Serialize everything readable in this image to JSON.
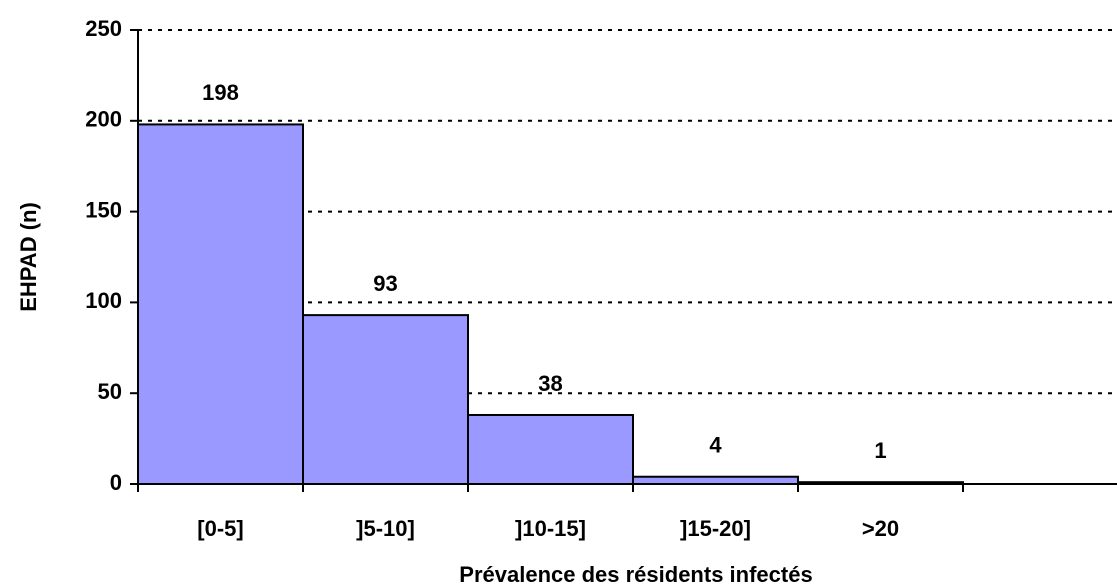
{
  "chart_data": {
    "type": "bar",
    "categories": [
      "[0-5]",
      "]5-10]",
      "]10-15]",
      "]15-20]",
      ">20"
    ],
    "values": [
      198,
      93,
      38,
      4,
      1
    ],
    "color": "#9999ff",
    "xlabel": "Prévalence des résidents infectés",
    "ylabel": "EHPAD (n)",
    "ylim": [
      0,
      250
    ],
    "yticks": [
      0,
      50,
      100,
      150,
      200,
      250
    ],
    "grid": true
  }
}
